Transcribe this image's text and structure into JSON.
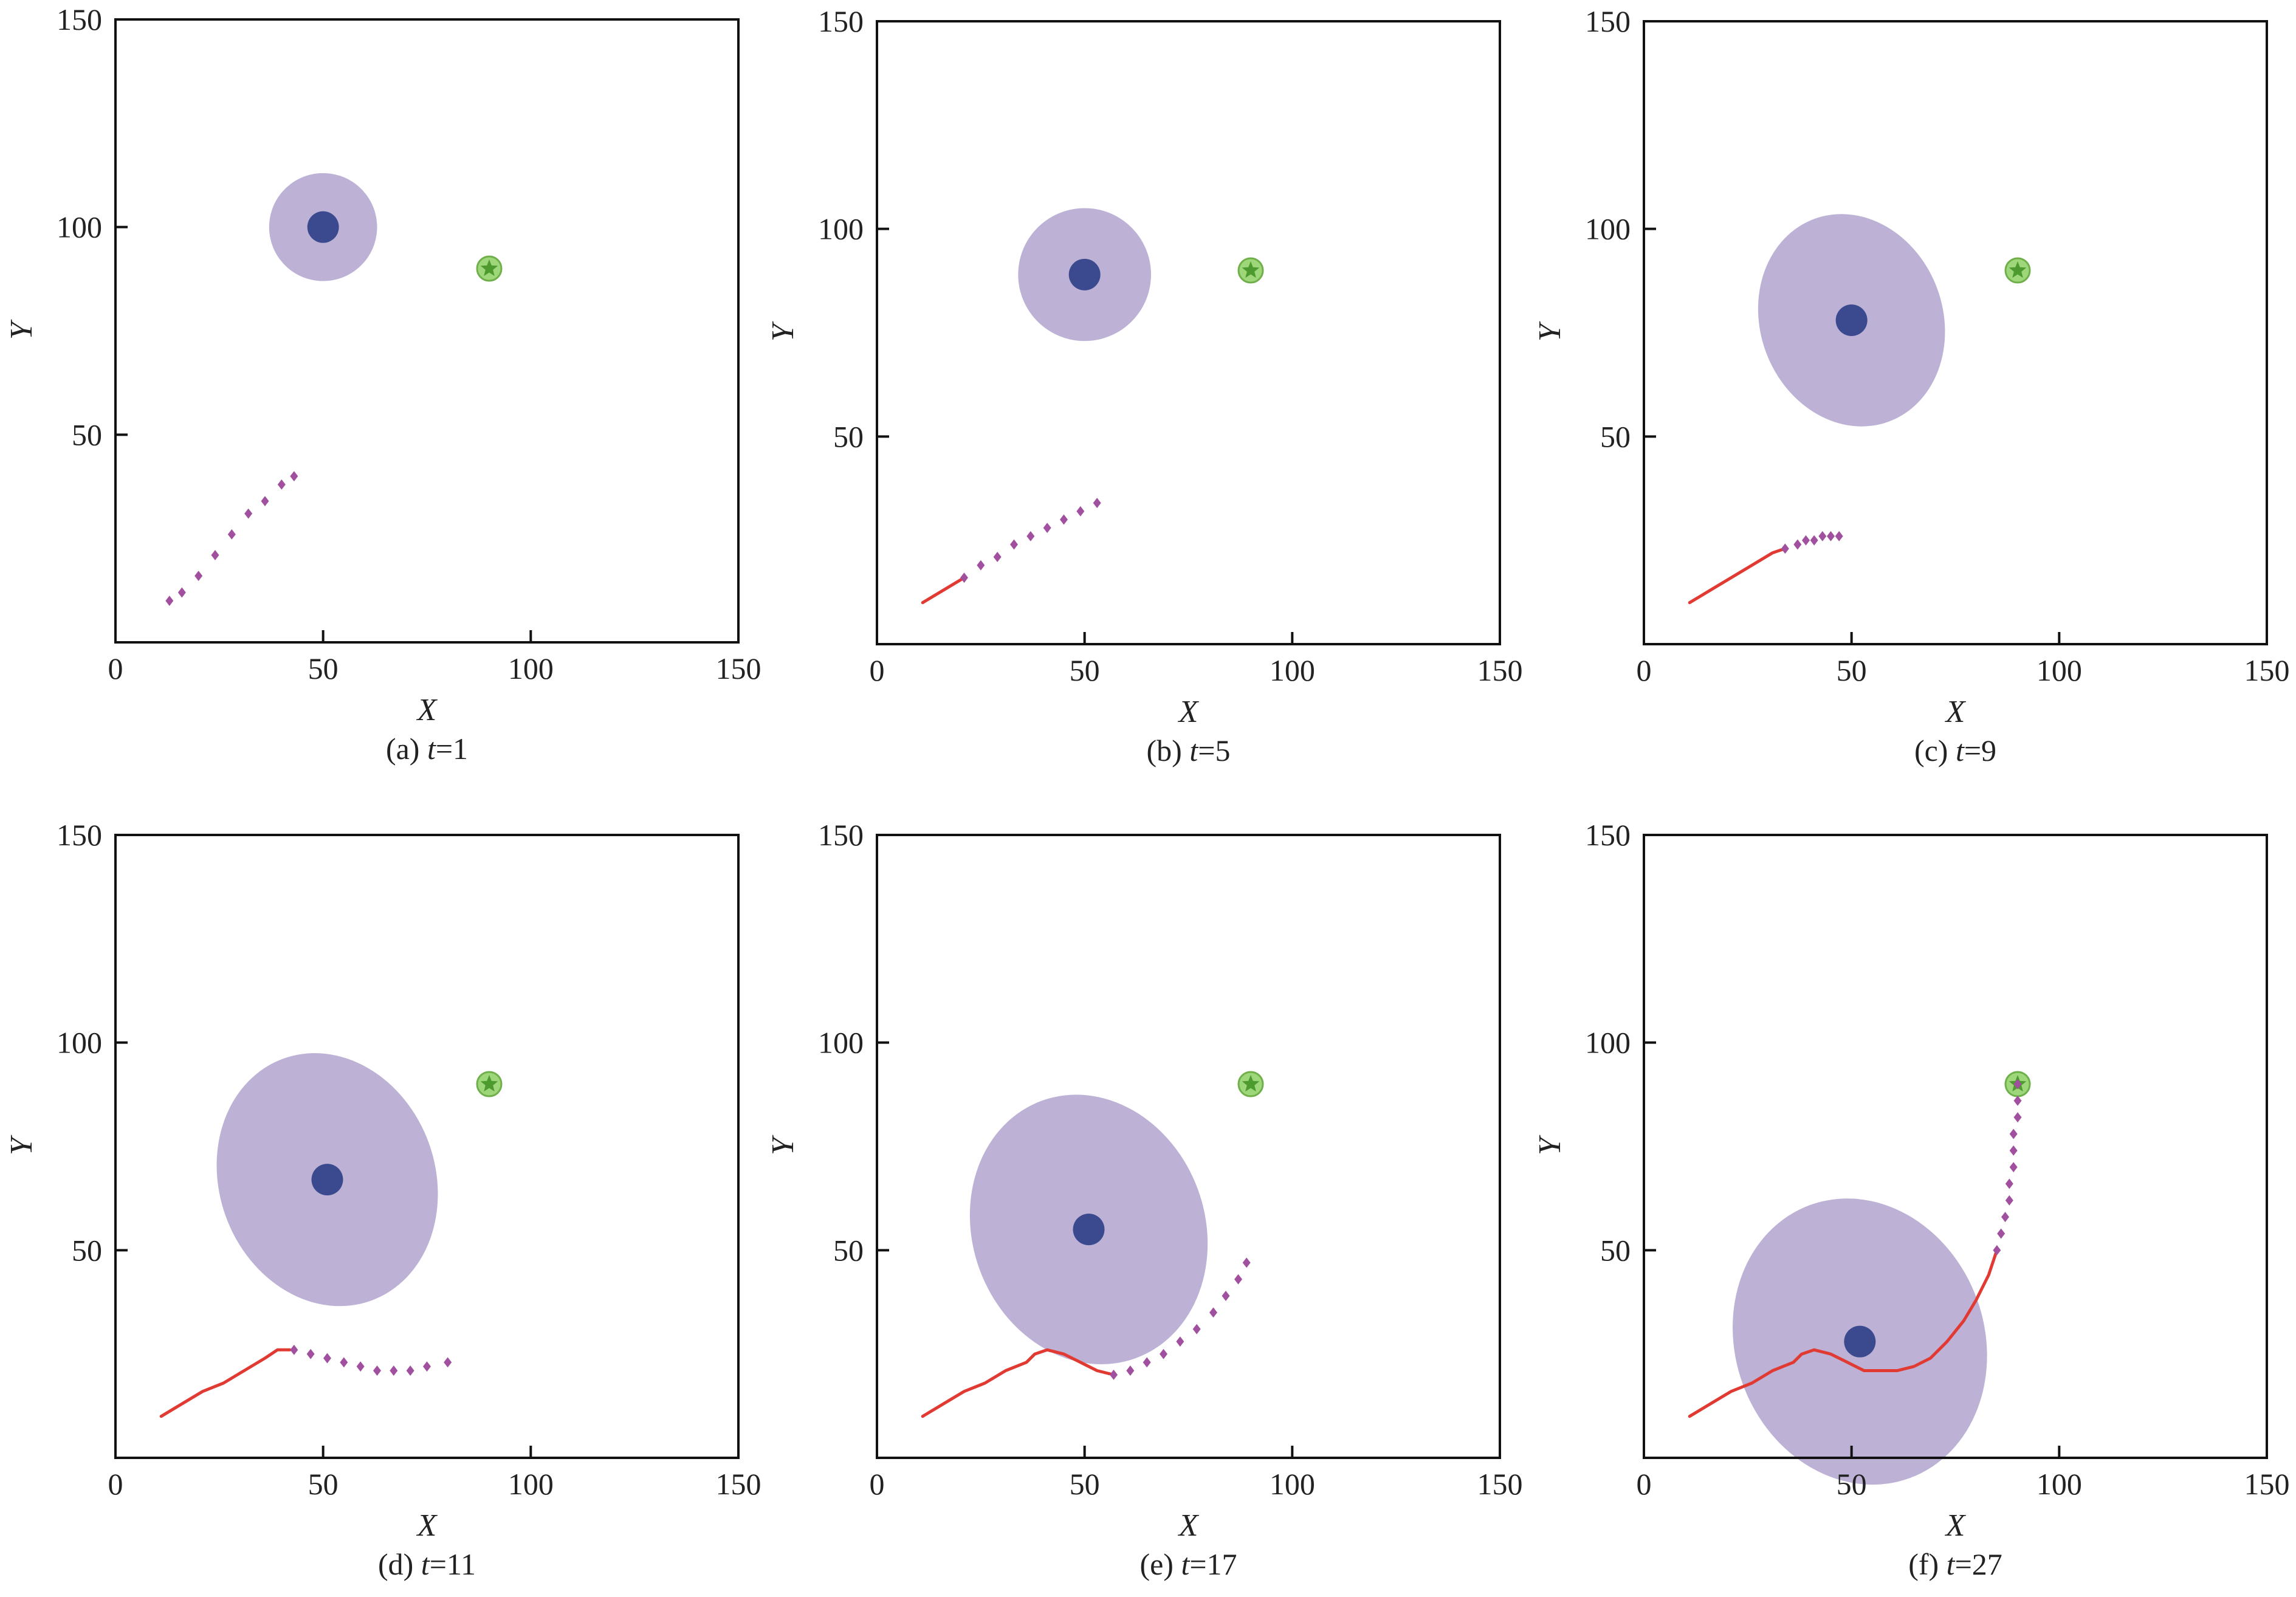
{
  "figure": {
    "colors": {
      "path": "#e03a32",
      "prediction": "#a0509e",
      "obstacle_region": "#bdb2d6",
      "obstacle_center": "#3b4a8f",
      "goal_fill": "#9ed67a",
      "goal_edge": "#6fb04a",
      "goal_star": "#4d9a2f",
      "axis": "#111111"
    },
    "icons": {
      "goal": "star-icon",
      "obstacle": "circle-icon"
    }
  },
  "chart_data": [
    {
      "type": "scatter",
      "caption_prefix": "(a) ",
      "caption_var": "t",
      "caption_suffix": "=1",
      "xlabel": "X",
      "ylabel": "Y",
      "xlim": [
        0,
        150
      ],
      "ylim": [
        0,
        150
      ],
      "xticks": [
        "0",
        "50",
        "100",
        "150"
      ],
      "yticks": [
        "50",
        "100",
        "150"
      ],
      "grid": false,
      "goal": {
        "x": 90,
        "y": 90
      },
      "obstacle": {
        "center": [
          50,
          100
        ],
        "rx": 13,
        "ry": 13,
        "angle": -15
      },
      "path": [],
      "prediction": [
        [
          13,
          10
        ],
        [
          16,
          12
        ],
        [
          20,
          16
        ],
        [
          24,
          21
        ],
        [
          28,
          26
        ],
        [
          32,
          31
        ],
        [
          36,
          34
        ],
        [
          40,
          38
        ],
        [
          43,
          40
        ]
      ]
    },
    {
      "type": "scatter",
      "caption_prefix": "(b) ",
      "caption_var": "t",
      "caption_suffix": "=5",
      "xlabel": "X",
      "ylabel": "Y",
      "xlim": [
        0,
        150
      ],
      "ylim": [
        0,
        150
      ],
      "xticks": [
        "0",
        "50",
        "100",
        "150"
      ],
      "yticks": [
        "50",
        "100",
        "150"
      ],
      "grid": false,
      "goal": {
        "x": 90,
        "y": 90
      },
      "obstacle": {
        "center": [
          50,
          89
        ],
        "rx": 16,
        "ry": 16,
        "angle": -15
      },
      "path": [
        [
          11,
          10
        ],
        [
          16,
          13
        ],
        [
          21,
          16
        ]
      ],
      "prediction": [
        [
          21,
          16
        ],
        [
          25,
          19
        ],
        [
          29,
          21
        ],
        [
          33,
          24
        ],
        [
          37,
          26
        ],
        [
          41,
          28
        ],
        [
          45,
          30
        ],
        [
          49,
          32
        ],
        [
          53,
          34
        ]
      ]
    },
    {
      "type": "scatter",
      "caption_prefix": "(c) ",
      "caption_var": "t",
      "caption_suffix": "=9",
      "xlabel": "X",
      "ylabel": "Y",
      "xlim": [
        0,
        150
      ],
      "ylim": [
        0,
        150
      ],
      "xticks": [
        "0",
        "50",
        "100",
        "150"
      ],
      "yticks": [
        "50",
        "100",
        "150"
      ],
      "grid": false,
      "goal": {
        "x": 90,
        "y": 90
      },
      "obstacle": {
        "center": [
          50,
          78
        ],
        "rx": 22,
        "ry": 26,
        "angle": -20
      },
      "path": [
        [
          11,
          10
        ],
        [
          16,
          13
        ],
        [
          21,
          16
        ],
        [
          26,
          19
        ],
        [
          31,
          22
        ],
        [
          34,
          23
        ]
      ],
      "prediction": [
        [
          34,
          23
        ],
        [
          37,
          24
        ],
        [
          39,
          25
        ],
        [
          41,
          25
        ],
        [
          43,
          26
        ],
        [
          45,
          26
        ],
        [
          47,
          26
        ]
      ]
    },
    {
      "type": "scatter",
      "caption_prefix": "(d) ",
      "caption_var": "t",
      "caption_suffix": "=11",
      "xlabel": "X",
      "ylabel": "Y",
      "xlim": [
        0,
        150
      ],
      "ylim": [
        0,
        150
      ],
      "xticks": [
        "0",
        "50",
        "100",
        "150"
      ],
      "yticks": [
        "50",
        "100",
        "150"
      ],
      "grid": false,
      "goal": {
        "x": 90,
        "y": 90
      },
      "obstacle": {
        "center": [
          51,
          67
        ],
        "rx": 26,
        "ry": 31,
        "angle": -20
      },
      "path": [
        [
          11,
          10
        ],
        [
          16,
          13
        ],
        [
          21,
          16
        ],
        [
          26,
          18
        ],
        [
          31,
          21
        ],
        [
          36,
          24
        ],
        [
          39,
          26
        ],
        [
          42,
          26
        ]
      ],
      "prediction": [
        [
          43,
          26
        ],
        [
          47,
          25
        ],
        [
          51,
          24
        ],
        [
          55,
          23
        ],
        [
          59,
          22
        ],
        [
          63,
          21
        ],
        [
          67,
          21
        ],
        [
          71,
          21
        ],
        [
          75,
          22
        ],
        [
          80,
          23
        ]
      ]
    },
    {
      "type": "scatter",
      "caption_prefix": "(e) ",
      "caption_var": "t",
      "caption_suffix": "=17",
      "xlabel": "X",
      "ylabel": "Y",
      "xlim": [
        0,
        150
      ],
      "ylim": [
        0,
        150
      ],
      "xticks": [
        "0",
        "50",
        "100",
        "150"
      ],
      "yticks": [
        "50",
        "100",
        "150"
      ],
      "grid": false,
      "goal": {
        "x": 90,
        "y": 90
      },
      "obstacle": {
        "center": [
          51,
          55
        ],
        "rx": 28,
        "ry": 33,
        "angle": -20
      },
      "path": [
        [
          11,
          10
        ],
        [
          16,
          13
        ],
        [
          21,
          16
        ],
        [
          26,
          18
        ],
        [
          31,
          21
        ],
        [
          36,
          23
        ],
        [
          38,
          25
        ],
        [
          41,
          26
        ],
        [
          45,
          25
        ],
        [
          49,
          23
        ],
        [
          53,
          21
        ],
        [
          57,
          20
        ]
      ],
      "prediction": [
        [
          57,
          20
        ],
        [
          61,
          21
        ],
        [
          65,
          23
        ],
        [
          69,
          25
        ],
        [
          73,
          28
        ],
        [
          77,
          31
        ],
        [
          81,
          35
        ],
        [
          84,
          39
        ],
        [
          87,
          43
        ],
        [
          89,
          47
        ]
      ]
    },
    {
      "type": "scatter",
      "caption_prefix": "(f) ",
      "caption_var": "t",
      "caption_suffix": "=27",
      "xlabel": "X",
      "ylabel": "Y",
      "xlim": [
        0,
        150
      ],
      "ylim": [
        0,
        150
      ],
      "xticks": [
        "0",
        "50",
        "100",
        "150"
      ],
      "yticks": [
        "50",
        "100",
        "150"
      ],
      "grid": false,
      "goal": {
        "x": 90,
        "y": 90
      },
      "obstacle": {
        "center": [
          52,
          28
        ],
        "rx": 30,
        "ry": 35,
        "angle": -20
      },
      "path": [
        [
          11,
          10
        ],
        [
          16,
          13
        ],
        [
          21,
          16
        ],
        [
          26,
          18
        ],
        [
          31,
          21
        ],
        [
          36,
          23
        ],
        [
          38,
          25
        ],
        [
          41,
          26
        ],
        [
          45,
          25
        ],
        [
          49,
          23
        ],
        [
          53,
          21
        ],
        [
          57,
          21
        ],
        [
          61,
          21
        ],
        [
          65,
          22
        ],
        [
          69,
          24
        ],
        [
          73,
          28
        ],
        [
          77,
          33
        ],
        [
          80,
          38
        ],
        [
          83,
          44
        ],
        [
          85,
          50
        ]
      ],
      "prediction": [
        [
          85,
          50
        ],
        [
          86,
          54
        ],
        [
          87,
          58
        ],
        [
          88,
          62
        ],
        [
          88,
          66
        ],
        [
          89,
          70
        ],
        [
          89,
          74
        ],
        [
          89,
          78
        ],
        [
          90,
          82
        ],
        [
          90,
          86
        ],
        [
          90,
          90
        ]
      ]
    }
  ]
}
